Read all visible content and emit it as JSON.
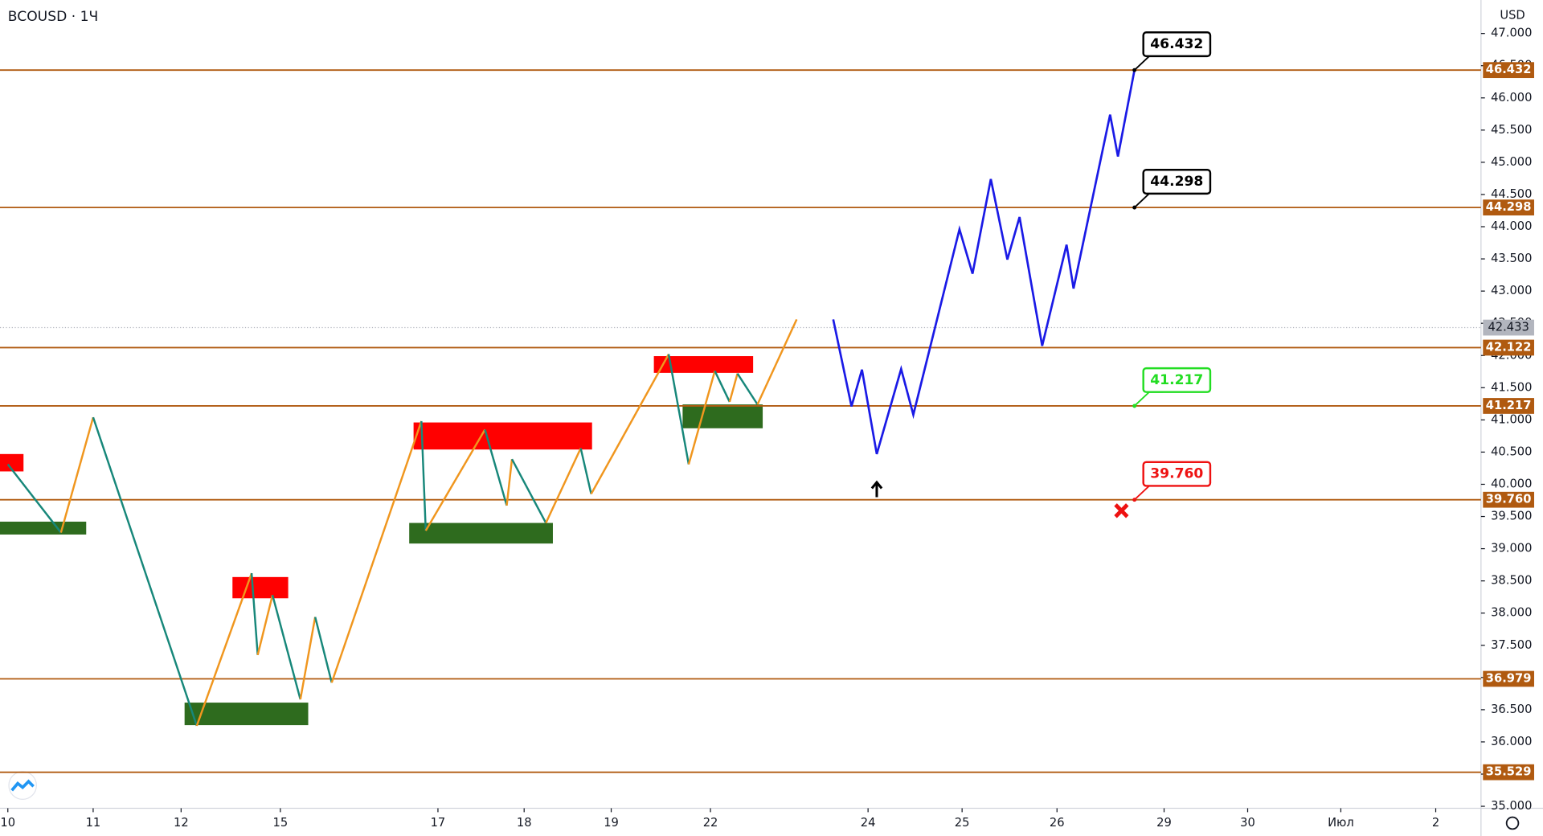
{
  "chart_data": {
    "type": "line",
    "title": "BCOUSD · 1Ч",
    "currency": "USD",
    "xlim": [
      -0.09,
      16.92
    ],
    "ylim": [
      34.97,
      47.52
    ],
    "xticks": [
      {
        "value": 0,
        "label": "10"
      },
      {
        "value": 0.98,
        "label": "11"
      },
      {
        "value": 1.99,
        "label": "12"
      },
      {
        "value": 3.13,
        "label": "15"
      },
      {
        "value": 4.94,
        "label": "17"
      },
      {
        "value": 5.93,
        "label": "18"
      },
      {
        "value": 6.93,
        "label": "19"
      },
      {
        "value": 8.07,
        "label": "22"
      },
      {
        "value": 9.88,
        "label": "24"
      },
      {
        "value": 10.96,
        "label": "25"
      },
      {
        "value": 12.05,
        "label": "26"
      },
      {
        "value": 13.28,
        "label": "29"
      },
      {
        "value": 14.24,
        "label": "30"
      },
      {
        "value": 15.31,
        "label": "Июл"
      },
      {
        "value": 16.4,
        "label": "2"
      }
    ],
    "yticks": [
      {
        "value": 35,
        "label": "35.000"
      },
      {
        "value": 35.5,
        "label": "35.500"
      },
      {
        "value": 36,
        "label": "36.000"
      },
      {
        "value": 36.5,
        "label": "36.500"
      },
      {
        "value": 37,
        "label": "37.000"
      },
      {
        "value": 37.5,
        "label": "37.500"
      },
      {
        "value": 38,
        "label": "38.000"
      },
      {
        "value": 38.5,
        "label": "38.500"
      },
      {
        "value": 39,
        "label": "39.000"
      },
      {
        "value": 39.5,
        "label": "39.500"
      },
      {
        "value": 40,
        "label": "40.000"
      },
      {
        "value": 40.5,
        "label": "40.500"
      },
      {
        "value": 41,
        "label": "41.000"
      },
      {
        "value": 41.5,
        "label": "41.500"
      },
      {
        "value": 42,
        "label": "42.000"
      },
      {
        "value": 42.5,
        "label": "42.500"
      },
      {
        "value": 43,
        "label": "43.000"
      },
      {
        "value": 43.5,
        "label": "43.500"
      },
      {
        "value": 44,
        "label": "44.000"
      },
      {
        "value": 44.5,
        "label": "44.500"
      },
      {
        "value": 45,
        "label": "45.000"
      },
      {
        "value": 45.5,
        "label": "45.500"
      },
      {
        "value": 46,
        "label": "46.000"
      },
      {
        "value": 46.5,
        "label": "46.500"
      },
      {
        "value": 47,
        "label": "47.000"
      }
    ],
    "levels": {
      "color": "#b05a10",
      "values": [
        46.432,
        44.298,
        42.122,
        41.217,
        39.76,
        36.979,
        35.529
      ],
      "value_labels": [
        "46.432",
        "44.298",
        "42.122",
        "41.217",
        "39.760",
        "36.979",
        "35.529"
      ]
    },
    "current_price": {
      "value": 42.433,
      "label": "42.433",
      "color": "#b2b5be"
    },
    "series": [
      {
        "color": "#1a1ae6",
        "x": [
          9.48,
          9.69,
          9.81,
          9.98,
          10.26,
          10.4,
          10.93,
          11.08,
          11.29,
          11.48,
          11.62,
          11.88,
          12.16,
          12.24,
          12.66,
          12.75,
          12.94
        ],
        "values": [
          42.56,
          41.21,
          41.78,
          40.47,
          41.79,
          41.08,
          43.96,
          43.27,
          44.74,
          43.49,
          44.15,
          42.15,
          43.72,
          43.04,
          45.74,
          45.09,
          46.432
        ]
      }
    ],
    "zigzag": {
      "up_color": "#f0961e",
      "down_color": "#17877a",
      "x": [
        0,
        0.61,
        0.98,
        2.17,
        2.8,
        2.87,
        3.04,
        3.36,
        3.53,
        3.72,
        4.75,
        4.8,
        5.48,
        5.73,
        5.79,
        6.18,
        6.58,
        6.7,
        7.59,
        7.82,
        8.12,
        8.29,
        8.38,
        8.61,
        9.06
      ],
      "values": [
        40.31,
        39.25,
        41.04,
        36.25,
        38.62,
        37.35,
        38.28,
        36.66,
        37.94,
        36.92,
        40.98,
        39.28,
        40.85,
        39.67,
        40.39,
        39.4,
        40.56,
        39.85,
        42.02,
        40.31,
        41.76,
        41.28,
        41.72,
        41.24,
        42.56
      ]
    },
    "zones": [
      {
        "color": "#ff0000",
        "x": [
          -0.09,
          0.18
        ],
        "values": [
          40.2,
          40.47
        ]
      },
      {
        "color": "#ff0000",
        "x": [
          2.58,
          3.22
        ],
        "values": [
          38.23,
          38.56
        ]
      },
      {
        "color": "#ff0000",
        "x": [
          4.66,
          6.71
        ],
        "values": [
          40.54,
          40.96
        ]
      },
      {
        "color": "#ff0000",
        "x": [
          7.42,
          8.56
        ],
        "values": [
          41.73,
          41.99
        ]
      },
      {
        "color": "#2e6b1e",
        "x": [
          -0.09,
          0.9
        ],
        "values": [
          39.22,
          39.42
        ]
      },
      {
        "color": "#2e6b1e",
        "x": [
          2.03,
          3.45
        ],
        "values": [
          36.26,
          36.61
        ]
      },
      {
        "color": "#2e6b1e",
        "x": [
          4.61,
          6.26
        ],
        "values": [
          39.08,
          39.4
        ]
      },
      {
        "color": "#2e6b1e",
        "x": [
          7.75,
          8.67
        ],
        "values": [
          40.87,
          41.24
        ]
      }
    ],
    "callouts": [
      {
        "x": 12.94,
        "value": 46.432,
        "label": "46.432",
        "color": "#000000"
      },
      {
        "x": 12.94,
        "value": 44.298,
        "label": "44.298",
        "color": "#000000"
      },
      {
        "x": 12.94,
        "value": 41.217,
        "label": "41.217",
        "color": "#22dd22"
      },
      {
        "x": 12.94,
        "value": 39.76,
        "label": "39.760",
        "color": "#ee1111"
      }
    ],
    "stop_mark": {
      "x": 12.79,
      "value": 39.59,
      "color": "#ee1111"
    },
    "arrow": {
      "x": 9.98,
      "values": [
        39.8,
        40.03
      ],
      "color": "#000000"
    }
  }
}
